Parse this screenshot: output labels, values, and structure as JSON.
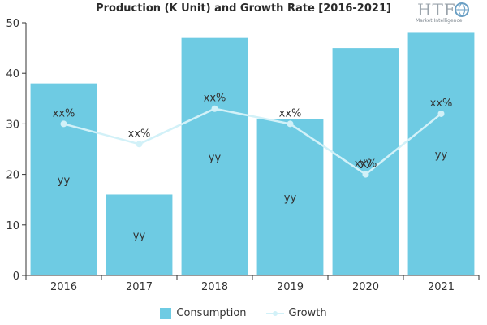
{
  "chart_data": {
    "type": "bar",
    "title": "Production (K Unit) and Growth Rate [2016-2021]",
    "categories": [
      "2016",
      "2017",
      "2018",
      "2019",
      "2020",
      "2021"
    ],
    "series": [
      {
        "name": "Consumption",
        "type": "bar",
        "values": [
          38,
          16,
          47,
          31,
          45,
          48
        ],
        "data_labels": [
          "yy",
          "yy",
          "yy",
          "yy",
          "yy",
          "yy"
        ]
      },
      {
        "name": "Growth",
        "type": "line",
        "values": [
          30,
          26,
          33,
          30,
          20,
          32
        ],
        "data_labels": [
          "xx%",
          "xx%",
          "xx%",
          "xx%",
          "xx%",
          "xx%"
        ]
      }
    ],
    "ylim": [
      0,
      50
    ],
    "yticks": [
      0,
      10,
      20,
      30,
      40,
      50
    ],
    "xlabel": "",
    "ylabel": "",
    "grid": false,
    "legend_position": "bottom",
    "colors": {
      "bar": "#6ecbe3",
      "line": "#d2f1f8",
      "axis": "#333333",
      "text": "#333333"
    }
  },
  "logo": {
    "mark": "HTF",
    "tagline": "Market Intelligence"
  }
}
